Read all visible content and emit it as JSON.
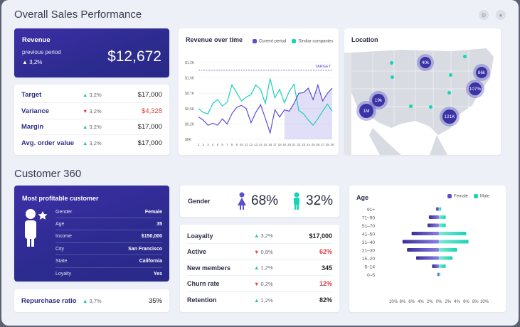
{
  "sections": {
    "overall_title": "Overall Sales Performance",
    "customer_title": "Customer 360"
  },
  "revenue": {
    "title": "Revenue",
    "sub": "previous period",
    "pct": "3,2%",
    "value": "$12,672"
  },
  "kpis": [
    {
      "label": "Target",
      "change": "3,2%",
      "dir": "up",
      "value": "$17,000"
    },
    {
      "label": "Variance",
      "change": "3,2%",
      "dir": "down",
      "value": "$4,328",
      "negative": true
    },
    {
      "label": "Margin",
      "change": "3,2%",
      "dir": "up",
      "value": "$17,000"
    },
    {
      "label": "Avg. order value",
      "change": "3,2%",
      "dir": "up",
      "value": "$17,000"
    }
  ],
  "revenue_chart": {
    "title": "Revenue over time",
    "legend_current": "Current period",
    "legend_similar": "Similar companies",
    "target_label": "TARGET",
    "colors": {
      "current": "#5b4fd1",
      "similar": "#19d3b5"
    }
  },
  "location": {
    "title": "Location",
    "bubbles": [
      "40k",
      "86k",
      "107%",
      "19k",
      "1M",
      "121K"
    ]
  },
  "customer": {
    "title": "Most profitable customer",
    "fields": [
      {
        "k": "Gender",
        "v": "Female"
      },
      {
        "k": "Age",
        "v": "35"
      },
      {
        "k": "Income",
        "v": "$150,000"
      },
      {
        "k": "City",
        "v": "San Francisco"
      },
      {
        "k": "State",
        "v": "California"
      },
      {
        "k": "Loyalty",
        "v": "Yes"
      }
    ]
  },
  "repurchase": {
    "label": "Repurchase ratio",
    "change": "3,7%",
    "value": "35%"
  },
  "gender": {
    "label": "Gender",
    "female": "68%",
    "male": "32%"
  },
  "loyalty_table": [
    {
      "label": "Loayalty",
      "change": "3,2%",
      "dir": "up",
      "value": "$17,000"
    },
    {
      "label": "Active",
      "change": "0,8%",
      "dir": "down",
      "value": "62%",
      "negative": true
    },
    {
      "label": "New members",
      "change": "1,2%",
      "dir": "up",
      "value": "345"
    },
    {
      "label": "Churn rate",
      "change": "0,2%",
      "dir": "down",
      "value": "12%",
      "negative": true
    },
    {
      "label": "Retention",
      "change": "1,2%",
      "dir": "up",
      "value": "82%"
    }
  ],
  "age_chart": {
    "title": "Age",
    "legend_female": "Female",
    "legend_male": "Male"
  },
  "chart_data": [
    {
      "type": "line",
      "title": "Revenue over time",
      "x": [
        1,
        2,
        3,
        4,
        5,
        6,
        7,
        8,
        9,
        10,
        11,
        12,
        13,
        14,
        15,
        16,
        17,
        18,
        19,
        20,
        21,
        22,
        23,
        24,
        25,
        26,
        27,
        28,
        29
      ],
      "y_ticks": [
        "$0K",
        "$0,2K",
        "$0,5K",
        "$0,7K",
        "$1,0K",
        "$1,2K"
      ],
      "target": 1.0,
      "series": [
        {
          "name": "Current period",
          "values": [
            0.35,
            0.3,
            0.22,
            0.25,
            0.22,
            0.32,
            0.24,
            0.4,
            0.5,
            0.53,
            0.48,
            0.26,
            0.42,
            0.54,
            0.33,
            0.1,
            0.46,
            0.35,
            0.46,
            0.44,
            0.56,
            0.72,
            0.73,
            0.8,
            0.62,
            0.85,
            0.6,
            0.72,
            0.8
          ]
        },
        {
          "name": "Similar companies",
          "values": [
            0.48,
            0.42,
            0.4,
            0.56,
            0.62,
            0.52,
            0.58,
            0.85,
            0.73,
            0.6,
            0.66,
            0.7,
            0.85,
            0.78,
            0.56,
            0.95,
            0.65,
            0.78,
            0.57,
            0.75,
            0.86,
            0.45,
            0.4,
            0.3,
            0.22,
            0.32,
            0.44,
            0.55,
            0.44
          ]
        }
      ]
    },
    {
      "type": "bar",
      "title": "Age",
      "categories": [
        "91+",
        "71–90",
        "51–70",
        "41–50",
        "31–40",
        "21–30",
        "15–20",
        "6–14",
        "0–5"
      ],
      "x_ticks": [
        "10%",
        "8%",
        "6%",
        "4%",
        "2%",
        "0%",
        "2%",
        "4%",
        "6%",
        "8%",
        "10%"
      ],
      "series": [
        {
          "name": "Female",
          "values": [
            0.6,
            2.2,
            2.5,
            6,
            8,
            7,
            5,
            1.5,
            0.3
          ]
        },
        {
          "name": "Male",
          "values": [
            0.5,
            1.5,
            1.5,
            6,
            6.5,
            4,
            3,
            1.5,
            0.3
          ]
        }
      ]
    }
  ]
}
